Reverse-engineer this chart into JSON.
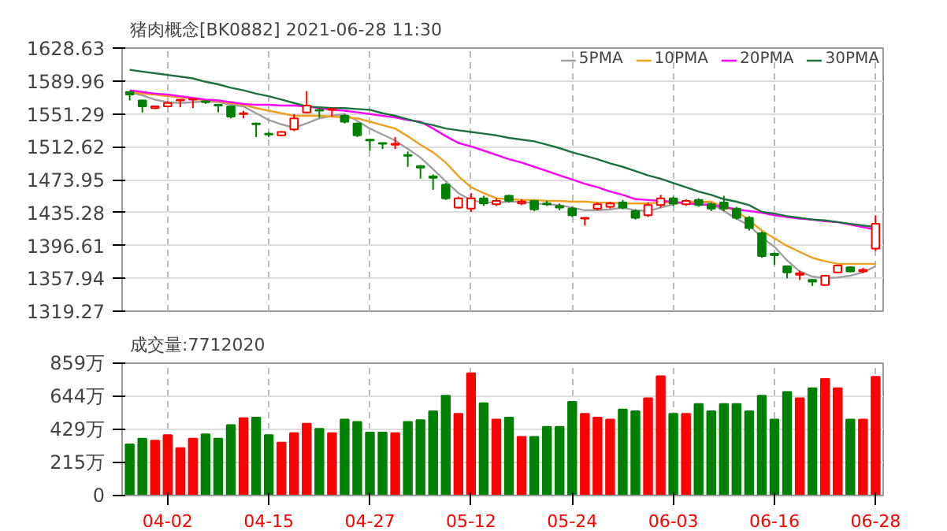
{
  "chart_data": [
    {
      "type": "candlestick",
      "title": "猪肉概念[BK0882] 2021-06-28 11:30",
      "categories": [
        null,
        null,
        null,
        null,
        null,
        null,
        null,
        null,
        null,
        null,
        null,
        null,
        null,
        null,
        null,
        null,
        null,
        null,
        null,
        null,
        null,
        null,
        null,
        null,
        null,
        null,
        null,
        null,
        null,
        null,
        null,
        null,
        null,
        null,
        null,
        null,
        null,
        null,
        null,
        null,
        null,
        null,
        null,
        null,
        null,
        null,
        null,
        null,
        null,
        null,
        null,
        null,
        null,
        null,
        null,
        null,
        null,
        null,
        null,
        null
      ],
      "ohlc": [
        [
          1577,
          1578,
          1567,
          1574
        ],
        [
          1567,
          1568,
          1553,
          1560
        ],
        [
          1558,
          1561,
          1557,
          1560
        ],
        [
          1560,
          1566,
          1559,
          1564
        ],
        [
          1567,
          1568,
          1559,
          1568
        ],
        [
          1568,
          1569,
          1558,
          1569
        ],
        [
          1566,
          1567,
          1563,
          1565
        ],
        [
          1562,
          1562,
          1553,
          1561
        ],
        [
          1560,
          1561,
          1546,
          1548
        ],
        [
          1551,
          1555,
          1546,
          1552
        ],
        [
          1540,
          1541,
          1524,
          1539
        ],
        [
          1528,
          1530,
          1524,
          1527
        ],
        [
          1526,
          1531,
          1525,
          1530
        ],
        [
          1533,
          1551,
          1531,
          1546
        ],
        [
          1553,
          1578,
          1552,
          1561
        ],
        [
          1556,
          1558,
          1547,
          1555
        ],
        [
          1556,
          1557,
          1548,
          1557
        ],
        [
          1549,
          1551,
          1540,
          1542
        ],
        [
          1540,
          1541,
          1524,
          1526
        ],
        [
          1521,
          1522,
          1508,
          1520
        ],
        [
          1517,
          1517,
          1510,
          1516
        ],
        [
          1515,
          1524,
          1510,
          1516
        ],
        [
          1503,
          1507,
          1489,
          1502
        ],
        [
          1490,
          1491,
          1475,
          1488
        ],
        [
          1478,
          1480,
          1462,
          1476
        ],
        [
          1468,
          1470,
          1450,
          1452
        ],
        [
          1441,
          1454,
          1440,
          1452
        ],
        [
          1440,
          1458,
          1436,
          1452
        ],
        [
          1452,
          1455,
          1443,
          1446
        ],
        [
          1445,
          1452,
          1443,
          1449
        ],
        [
          1455,
          1456,
          1447,
          1449
        ],
        [
          1446,
          1451,
          1444,
          1448
        ],
        [
          1449,
          1450,
          1437,
          1439
        ],
        [
          1446,
          1449,
          1443,
          1445
        ],
        [
          1443,
          1446,
          1438,
          1441
        ],
        [
          1440,
          1442,
          1430,
          1432
        ],
        [
          1428,
          1430,
          1420,
          1429
        ],
        [
          1440,
          1447,
          1438,
          1445
        ],
        [
          1442,
          1448,
          1440,
          1446
        ],
        [
          1447,
          1450,
          1439,
          1441
        ],
        [
          1437,
          1439,
          1427,
          1429
        ],
        [
          1432,
          1447,
          1430,
          1444
        ],
        [
          1444,
          1456,
          1441,
          1452
        ],
        [
          1452,
          1454,
          1443,
          1446
        ],
        [
          1445,
          1451,
          1443,
          1449
        ],
        [
          1450,
          1452,
          1442,
          1444
        ],
        [
          1445,
          1447,
          1437,
          1440
        ],
        [
          1447,
          1455,
          1437,
          1440
        ],
        [
          1440,
          1442,
          1427,
          1429
        ],
        [
          1429,
          1431,
          1414,
          1417
        ],
        [
          1411,
          1413,
          1382,
          1384
        ],
        [
          1387,
          1388,
          1374,
          1385
        ],
        [
          1372,
          1373,
          1358,
          1365
        ],
        [
          1362,
          1367,
          1356,
          1364
        ],
        [
          1356,
          1357,
          1349,
          1354
        ],
        [
          1350,
          1362,
          1349,
          1361
        ],
        [
          1365,
          1374,
          1364,
          1373
        ],
        [
          1371,
          1372,
          1365,
          1366
        ],
        [
          1366,
          1370,
          1364,
          1368
        ],
        [
          1393,
          1432,
          1390,
          1422
        ]
      ],
      "series": [
        {
          "name": "5PMA",
          "type": "line",
          "color": "#a0a0a0",
          "values": [
            1577,
            1573,
            1568,
            1565,
            1564,
            1565,
            1566,
            1565,
            1562,
            1560,
            1552,
            1544,
            1539,
            1535,
            1540,
            1546,
            1549,
            1551,
            1543,
            1534,
            1527,
            1520,
            1510,
            1500,
            1486,
            1472,
            1458,
            1450,
            1447,
            1447,
            1448,
            1448,
            1446,
            1445,
            1444,
            1441,
            1438,
            1438,
            1439,
            1441,
            1438,
            1437,
            1441,
            1445,
            1448,
            1448,
            1446,
            1437,
            1428,
            1420,
            1406,
            1395,
            1379,
            1366,
            1360,
            1358,
            1359,
            1361,
            1365,
            1372
          ]
        },
        {
          "name": "10PMA",
          "type": "line",
          "color": "#f0a020",
          "values": [
            1577,
            1575,
            1574,
            1572,
            1571,
            1569,
            1567,
            1566,
            1564,
            1562,
            1558,
            1555,
            1552,
            1549,
            1549,
            1549,
            1548,
            1547,
            1546,
            1542,
            1538,
            1534,
            1525,
            1515,
            1506,
            1494,
            1478,
            1465,
            1458,
            1452,
            1451,
            1450,
            1450,
            1449,
            1449,
            1448,
            1448,
            1447,
            1447,
            1446,
            1446,
            1446,
            1447,
            1447,
            1447,
            1448,
            1448,
            1442,
            1437,
            1426,
            1414,
            1405,
            1396,
            1389,
            1382,
            1378,
            1375,
            1375,
            1375,
            1375
          ]
        },
        {
          "name": "20PMA",
          "type": "line",
          "color": "#ff00ff",
          "values": [
            1579,
            1577,
            1575,
            1574,
            1572,
            1570,
            1568,
            1567,
            1565,
            1563,
            1562,
            1562,
            1561,
            1561,
            1560,
            1558,
            1556,
            1555,
            1553,
            1551,
            1549,
            1547,
            1544,
            1542,
            1534,
            1525,
            1517,
            1513,
            1508,
            1503,
            1498,
            1494,
            1489,
            1484,
            1479,
            1474,
            1469,
            1465,
            1460,
            1456,
            1451,
            1450,
            1449,
            1448,
            1446,
            1445,
            1444,
            1442,
            1439,
            1437,
            1435,
            1432,
            1430,
            1428,
            1427,
            1425,
            1424,
            1421,
            1418,
            1415
          ]
        },
        {
          "name": "30PMA",
          "type": "line",
          "color": "#1f6f3f",
          "values": [
            1603,
            1601,
            1599,
            1597,
            1595,
            1593,
            1589,
            1586,
            1582,
            1579,
            1575,
            1572,
            1568,
            1564,
            1560,
            1559,
            1558,
            1558,
            1557,
            1556,
            1552,
            1549,
            1545,
            1541,
            1538,
            1534,
            1532,
            1530,
            1528,
            1526,
            1523,
            1521,
            1519,
            1515,
            1511,
            1506,
            1502,
            1498,
            1493,
            1489,
            1484,
            1479,
            1475,
            1470,
            1465,
            1460,
            1456,
            1451,
            1448,
            1444,
            1436,
            1434,
            1431,
            1429,
            1427,
            1426,
            1424,
            1422,
            1420,
            1418
          ]
        }
      ],
      "ylim": [
        1319.27,
        1628.63
      ],
      "yticks": [
        1319.27,
        1357.94,
        1396.61,
        1435.28,
        1473.95,
        1512.62,
        1551.29,
        1589.96,
        1628.63
      ],
      "grid": true,
      "legend": "top right",
      "tick_labels": "y"
    },
    {
      "type": "bar",
      "title": "成交量:7712020",
      "categories": [
        null,
        null,
        null,
        "04-02",
        null,
        null,
        null,
        null,
        null,
        null,
        null,
        "04-15",
        null,
        null,
        null,
        null,
        null,
        null,
        null,
        "04-27",
        null,
        null,
        null,
        null,
        null,
        null,
        null,
        "05-12",
        null,
        null,
        null,
        null,
        null,
        null,
        null,
        "05-24",
        null,
        null,
        null,
        null,
        null,
        null,
        null,
        "06-03",
        null,
        null,
        null,
        null,
        null,
        null,
        null,
        "06-16",
        null,
        null,
        null,
        null,
        null,
        null,
        null,
        "06-28"
      ],
      "values": [
        332,
        369,
        356,
        393,
        308,
        369,
        397,
        369,
        458,
        502,
        506,
        393,
        344,
        405,
        466,
        433,
        405,
        494,
        478,
        409,
        409,
        405,
        478,
        490,
        547,
        648,
        531,
        794,
        599,
        494,
        506,
        381,
        381,
        446,
        446,
        608,
        531,
        506,
        494,
        559,
        547,
        632,
        774,
        531,
        531,
        595,
        547,
        595,
        595,
        547,
        648,
        494,
        672,
        632,
        697,
        757,
        697,
        494,
        494,
        771
      ],
      "colors": [
        "#008000",
        "#008000",
        "#ff0000",
        "#ff0000",
        "#ff0000",
        "#ff0000",
        "#008000",
        "#008000",
        "#008000",
        "#ff0000",
        "#008000",
        "#008000",
        "#ff0000",
        "#ff0000",
        "#ff0000",
        "#008000",
        "#ff0000",
        "#008000",
        "#008000",
        "#008000",
        "#008000",
        "#ff0000",
        "#008000",
        "#008000",
        "#008000",
        "#008000",
        "#ff0000",
        "#ff0000",
        "#008000",
        "#ff0000",
        "#008000",
        "#ff0000",
        "#008000",
        "#008000",
        "#008000",
        "#008000",
        "#ff0000",
        "#ff0000",
        "#ff0000",
        "#008000",
        "#008000",
        "#ff0000",
        "#ff0000",
        "#008000",
        "#ff0000",
        "#008000",
        "#008000",
        "#008000",
        "#008000",
        "#008000",
        "#008000",
        "#008000",
        "#008000",
        "#ff0000",
        "#008000",
        "#ff0000",
        "#ff0000",
        "#008000",
        "#ff0000",
        "#ff0000"
      ],
      "ylim": [
        0,
        859
      ],
      "yticks": [
        0,
        {
          "value": 215,
          "label": "215万"
        },
        {
          "value": 429,
          "label": "429万"
        },
        {
          "value": 644,
          "label": "644万"
        },
        {
          "value": 859,
          "label": "859万"
        }
      ],
      "grid": true
    }
  ]
}
